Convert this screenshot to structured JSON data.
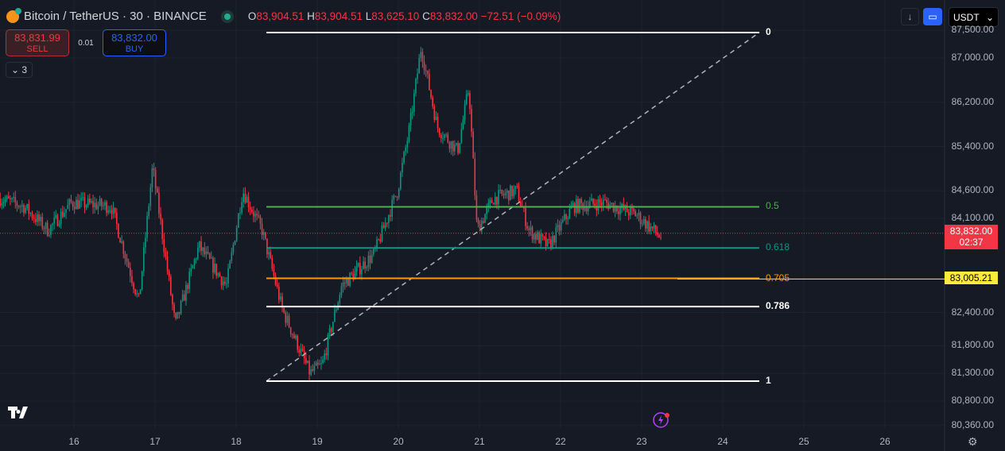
{
  "header": {
    "symbol": "Bitcoin / TetherUS · 30 · BINANCE",
    "ohlc": {
      "o_label": "O",
      "o": "83,904.51",
      "h_label": "H",
      "h": "83,904.51",
      "l_label": "L",
      "l": "83,625.10",
      "c_label": "C",
      "c": "83,832.00",
      "change": "−72.51 (−0.09%)"
    }
  },
  "trade": {
    "sell_price": "83,831.99",
    "sell_label": "SELL",
    "qty": "0.01",
    "buy_price": "83,832.00",
    "buy_label": "BUY"
  },
  "indicators_collapse": {
    "count": "3"
  },
  "toolbar": {
    "currency": "USDT"
  },
  "price_axis": [
    "87,500.00",
    "87,000.00",
    "86,200.00",
    "85,400.00",
    "84,600.00",
    "84,100.00",
    "82,400.00",
    "81,800.00",
    "81,300.00",
    "80,800.00",
    "80,360.00"
  ],
  "price_axis_values": [
    87500,
    87000,
    86200,
    85400,
    84600,
    84100,
    82400,
    81800,
    81300,
    80800,
    80360
  ],
  "current_price": {
    "price": "83,832.00",
    "countdown": "02:37",
    "value": 83832,
    "color": "#f23645"
  },
  "alert_price": {
    "price": "83,005.21",
    "value": 83005.21,
    "color": "#ffeb3b"
  },
  "date_axis": [
    "16",
    "17",
    "18",
    "19",
    "20",
    "21",
    "22",
    "23",
    "24",
    "25",
    "26"
  ],
  "fib": {
    "high": 87460,
    "low": 81160,
    "levels": [
      {
        "label": "0",
        "ratio": 0,
        "color": "#ffffff"
      },
      {
        "label": "0.5",
        "ratio": 0.5,
        "color": "#4caf50"
      },
      {
        "label": "0.618",
        "ratio": 0.618,
        "color": "#089981"
      },
      {
        "label": "0.705",
        "ratio": 0.705,
        "color": "#ff9800"
      },
      {
        "label": "0.786",
        "ratio": 0.786,
        "color": "#ffffff"
      },
      {
        "label": "1",
        "ratio": 1,
        "color": "#ffffff"
      }
    ]
  },
  "chart_data": {
    "type": "candlestick",
    "interval": "30",
    "up_color": "#089981",
    "down_color": "#f23645",
    "path": [
      [
        15.09,
        84460
      ],
      [
        15.38,
        84317
      ],
      [
        15.68,
        83886
      ],
      [
        15.97,
        84389
      ],
      [
        16.46,
        84317
      ],
      [
        16.8,
        82595
      ],
      [
        16.97,
        85034
      ],
      [
        17.25,
        82165
      ],
      [
        17.54,
        83600
      ],
      [
        17.88,
        82882
      ],
      [
        18.08,
        84604
      ],
      [
        18.32,
        83886
      ],
      [
        18.57,
        82452
      ],
      [
        18.91,
        81304
      ],
      [
        19.06,
        81448
      ],
      [
        19.3,
        82882
      ],
      [
        19.7,
        83456
      ],
      [
        19.99,
        84604
      ],
      [
        20.14,
        85752
      ],
      [
        20.28,
        87187
      ],
      [
        20.48,
        85752
      ],
      [
        20.73,
        85322
      ],
      [
        20.87,
        86470
      ],
      [
        20.97,
        83886
      ],
      [
        21.17,
        84460
      ],
      [
        21.46,
        84604
      ],
      [
        21.61,
        83886
      ],
      [
        21.85,
        83600
      ],
      [
        22.15,
        84317
      ],
      [
        22.54,
        84389
      ],
      [
        22.93,
        84174
      ],
      [
        23.25,
        83743
      ]
    ]
  }
}
